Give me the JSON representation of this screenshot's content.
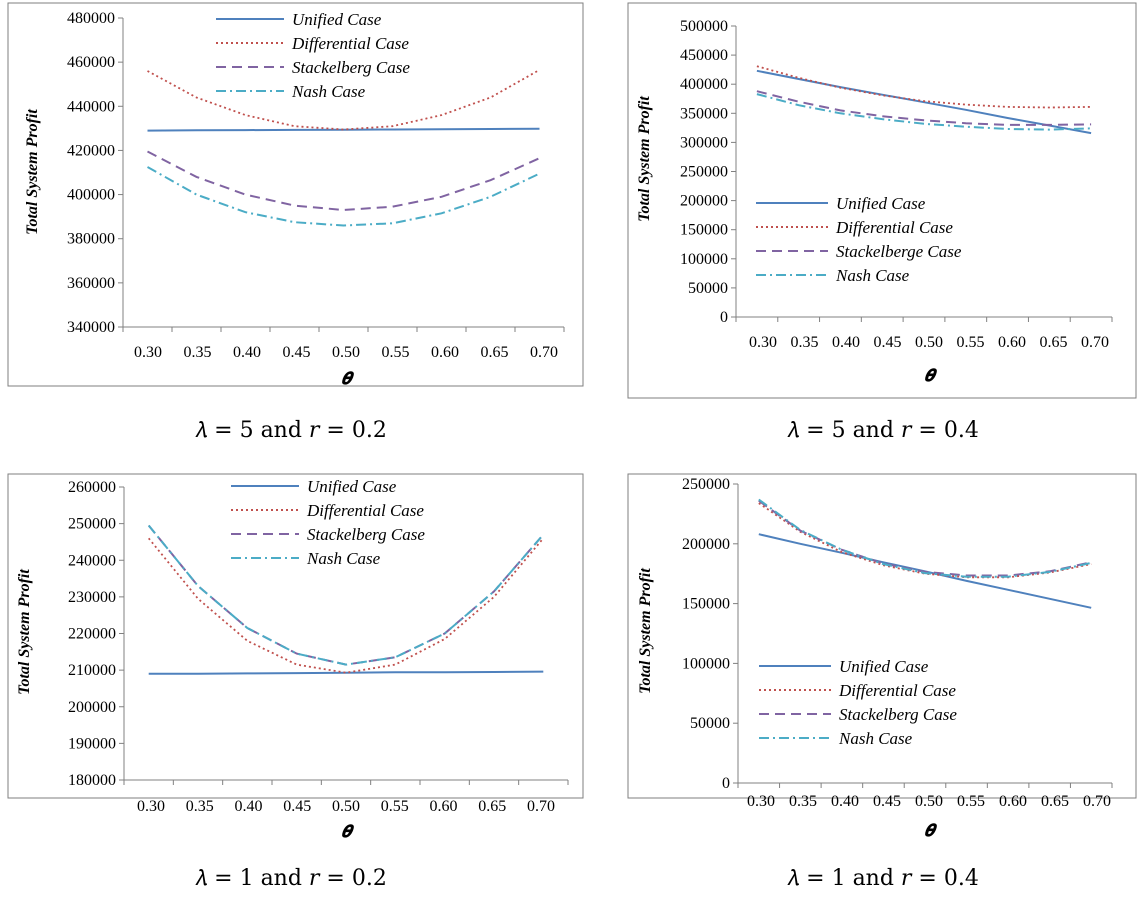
{
  "figure": {
    "charts": [
      {
        "caption": "𝜆 = 5 and 𝑟 = 0.2"
      },
      {
        "caption": "𝜆 = 5 and 𝑟 = 0.4"
      },
      {
        "caption": "𝜆 = 1 and 𝑟 = 0.2"
      },
      {
        "caption": "𝜆 = 1 and 𝑟 = 0.4"
      }
    ]
  },
  "colors": {
    "unified": "#4F81BD",
    "differential": "#C0504D",
    "stackelberg": "#8064A2",
    "nash": "#4BACC6",
    "frame": "#7f7f7f",
    "axis": "#808080"
  },
  "chart_data": [
    {
      "type": "line",
      "xlabel": "𝜽",
      "ylabel": "Total System Profit",
      "categories": [
        "0.30",
        "0.35",
        "0.40",
        "0.45",
        "0.50",
        "0.55",
        "0.60",
        "0.65",
        "0.70"
      ],
      "ylim": [
        340000,
        480000
      ],
      "yticks": [
        340000,
        360000,
        380000,
        400000,
        420000,
        440000,
        460000,
        480000
      ],
      "series": [
        {
          "name": "Unified Case",
          "values": [
            429000,
            429100,
            429200,
            429300,
            429400,
            429500,
            429600,
            429700,
            429800
          ]
        },
        {
          "name": "Differential Case",
          "values": [
            456000,
            444000,
            436000,
            431000,
            429500,
            431000,
            436000,
            444000,
            456500
          ]
        },
        {
          "name": "Stackelberg Case",
          "values": [
            419500,
            408000,
            400000,
            395000,
            393000,
            394500,
            399000,
            406500,
            416500
          ]
        },
        {
          "name": "Nash Case",
          "values": [
            412500,
            400000,
            392000,
            387500,
            386000,
            387000,
            391500,
            399000,
            409500
          ]
        }
      ]
    },
    {
      "type": "line",
      "xlabel": "𝜽",
      "ylabel": "Total System Profit",
      "categories": [
        "0.30",
        "0.35",
        "0.40",
        "0.45",
        "0.50",
        "0.55",
        "0.60",
        "0.65",
        "0.70"
      ],
      "ylim": [
        0,
        500000
      ],
      "yticks": [
        0,
        50000,
        100000,
        150000,
        200000,
        250000,
        300000,
        350000,
        400000,
        450000,
        500000
      ],
      "series": [
        {
          "name": "Unified Case",
          "values": [
            423000,
            409000,
            395000,
            382000,
            369000,
            356000,
            342000,
            329000,
            316000
          ]
        },
        {
          "name": "Differential Case",
          "values": [
            431000,
            411000,
            394000,
            381000,
            371000,
            365000,
            361000,
            360000,
            361000
          ]
        },
        {
          "name": "Stackelberge Case",
          "values": [
            388000,
            370000,
            355000,
            345000,
            338000,
            333000,
            330000,
            330000,
            331000
          ]
        },
        {
          "name": "Nash Case",
          "values": [
            383000,
            364000,
            350000,
            340000,
            332000,
            327000,
            323000,
            322000,
            324000
          ]
        }
      ]
    },
    {
      "type": "line",
      "xlabel": "𝜽",
      "ylabel": "Total System Profit",
      "categories": [
        "0.30",
        "0.35",
        "0.40",
        "0.45",
        "0.50",
        "0.55",
        "0.60",
        "0.65",
        "0.70"
      ],
      "ylim": [
        180000,
        260000
      ],
      "yticks": [
        180000,
        190000,
        200000,
        210000,
        220000,
        230000,
        240000,
        250000,
        260000
      ],
      "series": [
        {
          "name": "Unified Case",
          "values": [
            209000,
            209000,
            209100,
            209200,
            209300,
            209400,
            209400,
            209500,
            209600
          ]
        },
        {
          "name": "Differential Case",
          "values": [
            246000,
            229500,
            218000,
            211500,
            209300,
            211500,
            218500,
            230000,
            246000
          ]
        },
        {
          "name": "Stackelberg Case",
          "values": [
            249500,
            233000,
            221500,
            214500,
            211500,
            213500,
            220000,
            231500,
            247000
          ]
        },
        {
          "name": "Nash Case",
          "values": [
            249500,
            233000,
            221500,
            214500,
            211500,
            213500,
            220000,
            231500,
            247000
          ]
        }
      ]
    },
    {
      "type": "line",
      "xlabel": "𝜽",
      "ylabel": "Total System Profit",
      "categories": [
        "0.30",
        "0.35",
        "0.40",
        "0.45",
        "0.50",
        "0.55",
        "0.60",
        "0.65",
        "0.70"
      ],
      "ylim": [
        0,
        250000
      ],
      "yticks": [
        0,
        50000,
        100000,
        150000,
        200000,
        250000
      ],
      "series": [
        {
          "name": "Unified Case",
          "values": [
            208000,
            200000,
            192500,
            184500,
            177000,
            169000,
            161500,
            154000,
            146500
          ]
        },
        {
          "name": "Differential Case",
          "values": [
            234000,
            210000,
            193000,
            182000,
            175000,
            172000,
            172000,
            176000,
            183000
          ]
        },
        {
          "name": "Stackelberg Case",
          "values": [
            236000,
            211000,
            195000,
            183500,
            176500,
            173500,
            173500,
            177000,
            184500
          ]
        },
        {
          "name": "Nash Case",
          "values": [
            237000,
            211500,
            195000,
            183000,
            175500,
            172500,
            172500,
            176500,
            184000
          ]
        }
      ]
    }
  ]
}
